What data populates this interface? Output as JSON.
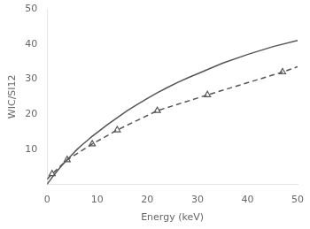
{
  "chart_data": {
    "type": "line",
    "xlabel": "Energy (keV)",
    "ylabel": "WIC/SI12",
    "xlim": [
      0,
      50
    ],
    "ylim": [
      0,
      50
    ],
    "xticks": [
      0,
      10,
      20,
      30,
      40,
      50
    ],
    "yticks": [
      10,
      20,
      30,
      40,
      50
    ],
    "grid": false,
    "series": [
      {
        "color": "#555555",
        "line_style": "solid",
        "marker": "none",
        "x": [
          0,
          0.2,
          0.5,
          1,
          2,
          3,
          4,
          5,
          6,
          7,
          8,
          9,
          10,
          12,
          14,
          16,
          18,
          20,
          22,
          24,
          26,
          28,
          30,
          35,
          40,
          45,
          50
        ],
        "values": [
          0,
          0.5,
          1.0,
          2.0,
          3.8,
          5.5,
          7.0,
          8.5,
          10.0,
          11.3,
          12.5,
          13.7,
          14.8,
          17.0,
          19.0,
          21.0,
          22.8,
          24.5,
          26.1,
          27.6,
          29.0,
          30.3,
          31.5,
          34.5,
          37.0,
          39.2,
          41.0
        ]
      },
      {
        "color": "#555555",
        "line_style": "dashed",
        "marker": "none",
        "x": [
          0,
          1,
          4,
          9,
          14,
          22,
          32,
          47,
          50
        ],
        "values": [
          1.5,
          3,
          7,
          11.5,
          15.5,
          21,
          25.5,
          32,
          33.5
        ]
      },
      {
        "color": "#555555",
        "line_style": "none",
        "marker": "triangle",
        "x": [
          1,
          4,
          9,
          14,
          22,
          32,
          47
        ],
        "values": [
          3,
          7,
          11.5,
          15.5,
          21,
          25.5,
          32
        ]
      }
    ]
  }
}
